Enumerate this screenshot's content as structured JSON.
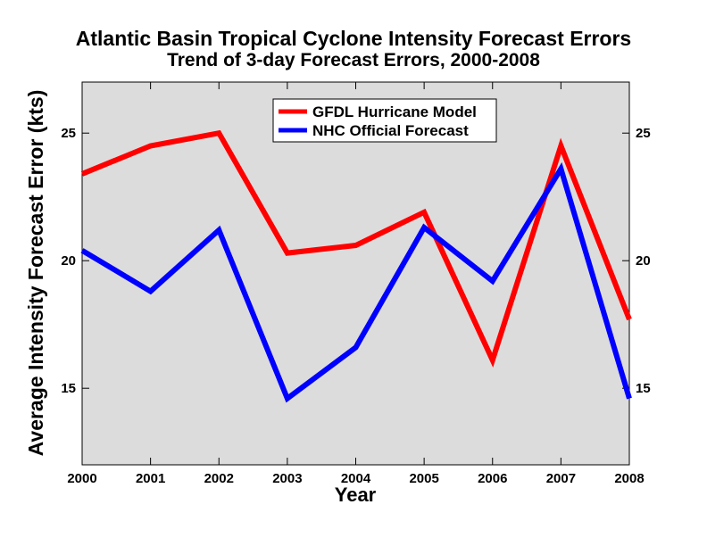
{
  "chart_data": {
    "type": "line",
    "title": "Atlantic Basin Tropical Cyclone Intensity Forecast Errors",
    "subtitle": "Trend of 3-day Forecast Errors, 2000-2008",
    "xlabel": "Year",
    "ylabel": "Average Intensity Forecast Error (kts)",
    "categories": [
      "2000",
      "2001",
      "2002",
      "2003",
      "2004",
      "2005",
      "2006",
      "2007",
      "2008"
    ],
    "xlim": [
      2000,
      2008
    ],
    "ylim": [
      12,
      27
    ],
    "yticks": [
      15,
      20,
      25
    ],
    "grid": false,
    "legend_position": "top-center",
    "background_color": "#dcdcdc",
    "series": [
      {
        "name": "GFDL Hurricane Model",
        "color": "#ff0000",
        "values": [
          23.4,
          24.5,
          25.0,
          20.3,
          20.6,
          21.9,
          16.1,
          24.5,
          17.7
        ]
      },
      {
        "name": "NHC Official Forecast",
        "color": "#0000ff",
        "values": [
          20.4,
          18.8,
          21.2,
          14.6,
          16.6,
          21.3,
          19.2,
          23.6,
          14.6
        ]
      }
    ]
  }
}
